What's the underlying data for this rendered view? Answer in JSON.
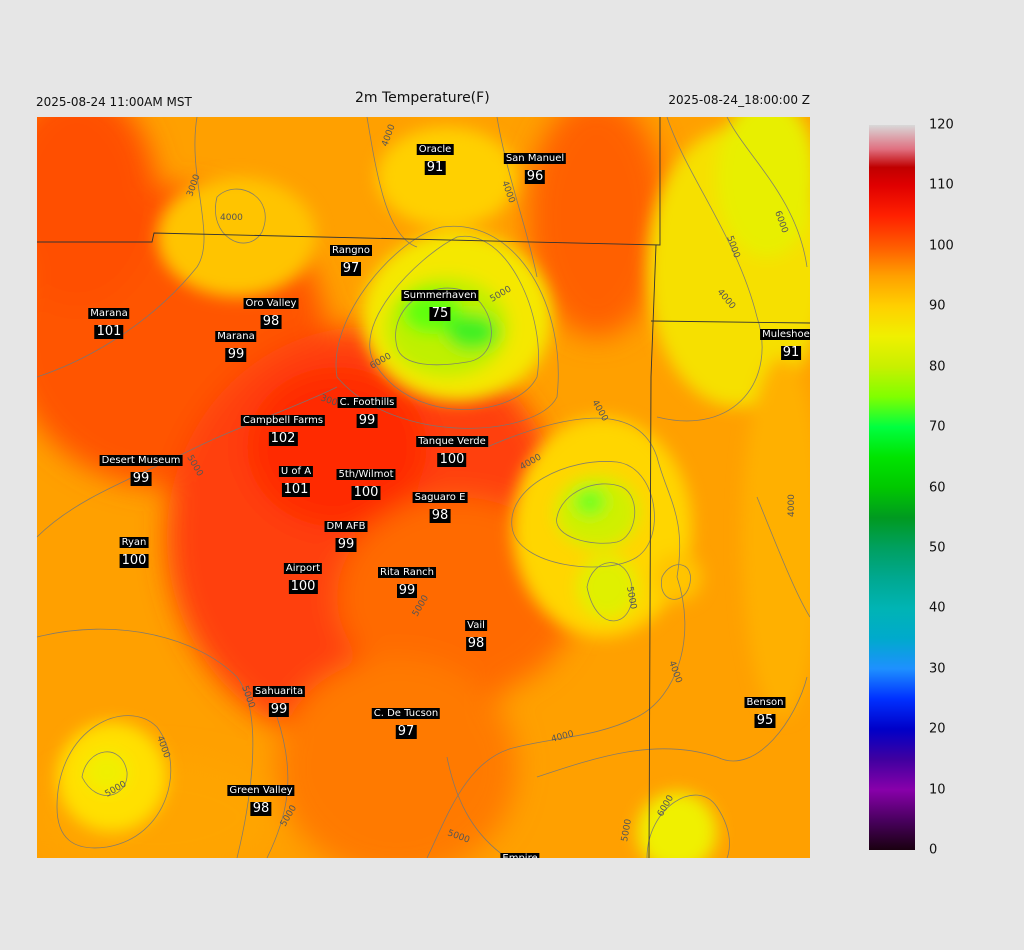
{
  "header": {
    "left_time": "2025-08-24 11:00AM MST",
    "title": "2m Temperature(F)",
    "right_time": "2025-08-24_18:00:00 Z"
  },
  "colorbar": {
    "min": 0,
    "max": 120,
    "ticks": [
      "120",
      "110",
      "100",
      "90",
      "80",
      "70",
      "60",
      "50",
      "40",
      "30",
      "20",
      "10",
      "0"
    ],
    "stops": [
      {
        "v": 0,
        "c": "#1a0010"
      },
      {
        "v": 5,
        "c": "#4a0060"
      },
      {
        "v": 10,
        "c": "#8800aa"
      },
      {
        "v": 15,
        "c": "#4000a0"
      },
      {
        "v": 20,
        "c": "#0000c8"
      },
      {
        "v": 25,
        "c": "#0030ff"
      },
      {
        "v": 30,
        "c": "#1e90ff"
      },
      {
        "v": 35,
        "c": "#00aacc"
      },
      {
        "v": 40,
        "c": "#00b4b4"
      },
      {
        "v": 45,
        "c": "#00a890"
      },
      {
        "v": 50,
        "c": "#00a060"
      },
      {
        "v": 55,
        "c": "#009a20"
      },
      {
        "v": 60,
        "c": "#00c800"
      },
      {
        "v": 65,
        "c": "#00e400"
      },
      {
        "v": 70,
        "c": "#00ff40"
      },
      {
        "v": 75,
        "c": "#80ff00"
      },
      {
        "v": 80,
        "c": "#c8f000"
      },
      {
        "v": 85,
        "c": "#f0f000"
      },
      {
        "v": 90,
        "c": "#ffd000"
      },
      {
        "v": 95,
        "c": "#ffa000"
      },
      {
        "v": 100,
        "c": "#ff5a00"
      },
      {
        "v": 105,
        "c": "#ff2000"
      },
      {
        "v": 110,
        "c": "#e00000"
      },
      {
        "v": 113,
        "c": "#c00000"
      },
      {
        "v": 116,
        "c": "#e07080"
      },
      {
        "v": 120,
        "c": "#d8d8d8"
      }
    ]
  },
  "contour_labels": [
    "4000",
    "3000",
    "5000",
    "6000"
  ],
  "stations": [
    {
      "name": "Oracle",
      "value": "91"
    },
    {
      "name": "San Manuel",
      "value": "96"
    },
    {
      "name": "Rangno",
      "value": "97"
    },
    {
      "name": "Oro Valley",
      "value": "98"
    },
    {
      "name": "Summerhaven",
      "value": "75"
    },
    {
      "name": "Marana",
      "value": "101"
    },
    {
      "name": "Marana",
      "value": "99"
    },
    {
      "name": "Muleshoe R",
      "value": "91"
    },
    {
      "name": "C. Foothills",
      "value": "99"
    },
    {
      "name": "Campbell Farms",
      "value": "102"
    },
    {
      "name": "Tanque Verde",
      "value": "100"
    },
    {
      "name": "Desert Museum",
      "value": "99"
    },
    {
      "name": "U of A",
      "value": "101"
    },
    {
      "name": "5th/Wilmot",
      "value": "100"
    },
    {
      "name": "Saguaro E",
      "value": "98"
    },
    {
      "name": "DM AFB",
      "value": "99"
    },
    {
      "name": "Ryan",
      "value": "100"
    },
    {
      "name": "Airport",
      "value": "100"
    },
    {
      "name": "Rita Ranch",
      "value": "99"
    },
    {
      "name": "Vail",
      "value": "98"
    },
    {
      "name": "Sahuarita",
      "value": "99"
    },
    {
      "name": "C. De Tucson",
      "value": "97"
    },
    {
      "name": "Benson",
      "value": "95"
    },
    {
      "name": "Green Valley",
      "value": "98"
    },
    {
      "name": "Empire",
      "value": ""
    }
  ]
}
